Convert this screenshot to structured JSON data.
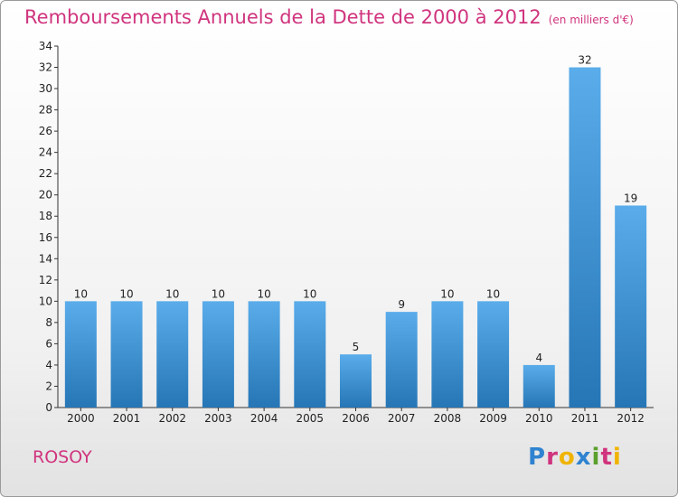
{
  "header": {
    "title": "Remboursements Annuels de la Dette de 2000 à 2012",
    "subtitle": "(en milliers d'€)"
  },
  "footer": {
    "commune": "ROSOY",
    "logo_text": "Proxiti",
    "logo_colors": [
      "#2f83d0",
      "#d0347e",
      "#f0b400",
      "#2f83d0",
      "#5aa02c",
      "#d0347e",
      "#f0b400"
    ]
  },
  "colors": {
    "bar_top": "#5aacea",
    "bar_bottom": "#2676b6",
    "title": "#d0347e"
  },
  "chart_data": {
    "type": "bar",
    "title": "Remboursements Annuels de la Dette de 2000 à 2012",
    "unit": "(en milliers d'€)",
    "categories": [
      "2000",
      "2001",
      "2002",
      "2003",
      "2004",
      "2005",
      "2006",
      "2007",
      "2008",
      "2009",
      "2010",
      "2011",
      "2012"
    ],
    "values": [
      10,
      10,
      10,
      10,
      10,
      10,
      5,
      9,
      10,
      10,
      4,
      32,
      19
    ],
    "ylim": [
      0,
      34
    ],
    "yticks": [
      0,
      2,
      4,
      6,
      8,
      10,
      12,
      14,
      16,
      18,
      20,
      22,
      24,
      26,
      28,
      30,
      32,
      34
    ],
    "grid": false,
    "data_labels": true
  }
}
